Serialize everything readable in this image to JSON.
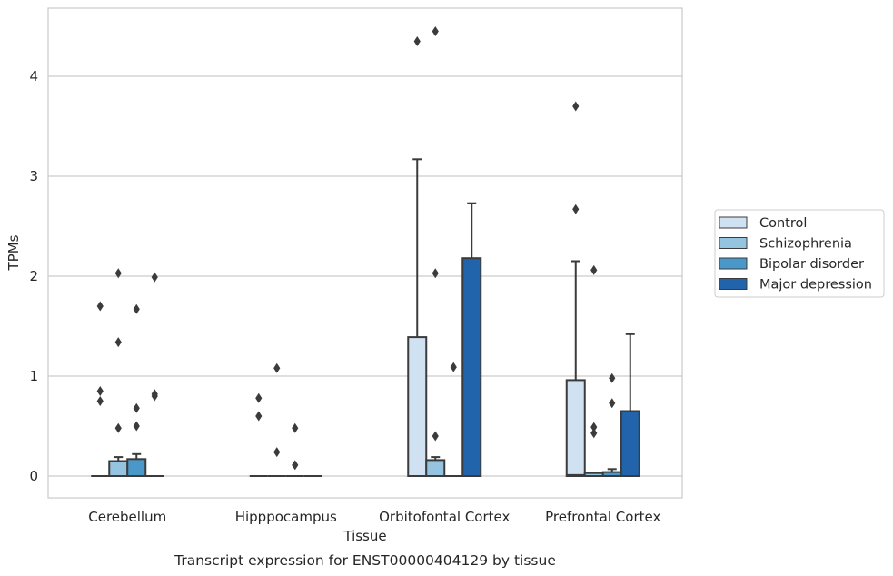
{
  "chart_data": {
    "type": "box",
    "title": "Transcript expression for ENST00000404129 by tissue",
    "xlabel": "Tissue",
    "ylabel": "TPMs",
    "ylim": [
      -0.22,
      4.7
    ],
    "yticks": [
      0,
      1,
      2,
      3,
      4
    ],
    "grid": "horizontal",
    "legend_position": "right",
    "categories": [
      "Cerebellum",
      "Hipppocampus",
      "Orbitofontal Cortex",
      "Prefrontal Cortex"
    ],
    "series": [
      {
        "name": "Control",
        "color": "#d0e1f2",
        "boxes": [
          {
            "q1": 0,
            "median": 0,
            "q3": 0,
            "whisker_low": 0,
            "whisker_high": 0,
            "outliers": [
              0.75,
              0.85,
              1.7
            ]
          },
          {
            "q1": 0,
            "median": 0,
            "q3": 0,
            "whisker_low": 0,
            "whisker_high": 0,
            "outliers": [
              0.6,
              0.78
            ]
          },
          {
            "q1": 0,
            "median": 0,
            "q3": 1.39,
            "whisker_low": 0,
            "whisker_high": 3.17,
            "outliers": [
              4.35
            ]
          },
          {
            "q1": 0,
            "median": 0.01,
            "q3": 0.96,
            "whisker_low": 0,
            "whisker_high": 2.15,
            "outliers": [
              2.67,
              3.7
            ]
          }
        ]
      },
      {
        "name": "Schizophrenia",
        "color": "#94c4df",
        "boxes": [
          {
            "q1": 0,
            "median": 0,
            "q3": 0.15,
            "whisker_low": 0,
            "whisker_high": 0.19,
            "outliers": [
              0.48,
              1.34,
              2.03
            ]
          },
          {
            "q1": 0,
            "median": 0,
            "q3": 0,
            "whisker_low": 0,
            "whisker_high": 0,
            "outliers": [
              0.24,
              1.08
            ]
          },
          {
            "q1": 0,
            "median": 0,
            "q3": 0.16,
            "whisker_low": 0,
            "whisker_high": 0.19,
            "outliers": [
              0.4,
              2.03,
              4.45
            ]
          },
          {
            "q1": 0,
            "median": 0,
            "q3": 0.03,
            "whisker_low": 0,
            "whisker_high": 0.03,
            "outliers": [
              0.43,
              0.49,
              2.06
            ]
          }
        ]
      },
      {
        "name": "Bipolar disorder",
        "color": "#4a98c9",
        "boxes": [
          {
            "q1": 0,
            "median": 0,
            "q3": 0.17,
            "whisker_low": 0,
            "whisker_high": 0.22,
            "outliers": [
              0.5,
              0.68,
              1.67
            ]
          },
          {
            "q1": 0,
            "median": 0,
            "q3": 0,
            "whisker_low": 0,
            "whisker_high": 0,
            "outliers": [
              0.11,
              0.48
            ]
          },
          {
            "q1": 0,
            "median": 0,
            "q3": 0,
            "whisker_low": 0,
            "whisker_high": 0,
            "outliers": [
              1.09
            ]
          },
          {
            "q1": 0,
            "median": 0,
            "q3": 0.04,
            "whisker_low": 0,
            "whisker_high": 0.07,
            "outliers": [
              0.73,
              0.98
            ]
          }
        ]
      },
      {
        "name": "Major depression",
        "color": "#2164ab",
        "boxes": [
          {
            "q1": 0,
            "median": 0,
            "q3": 0,
            "whisker_low": 0,
            "whisker_high": 0,
            "outliers": [
              0.8,
              0.82,
              1.99
            ]
          },
          {
            "q1": 0,
            "median": 0,
            "q3": 0,
            "whisker_low": 0,
            "whisker_high": 0,
            "outliers": []
          },
          {
            "q1": 0,
            "median": 0,
            "q3": 2.18,
            "whisker_low": 0,
            "whisker_high": 2.73,
            "outliers": []
          },
          {
            "q1": 0,
            "median": 0,
            "q3": 0.65,
            "whisker_low": 0,
            "whisker_high": 1.42,
            "outliers": []
          }
        ]
      }
    ]
  }
}
